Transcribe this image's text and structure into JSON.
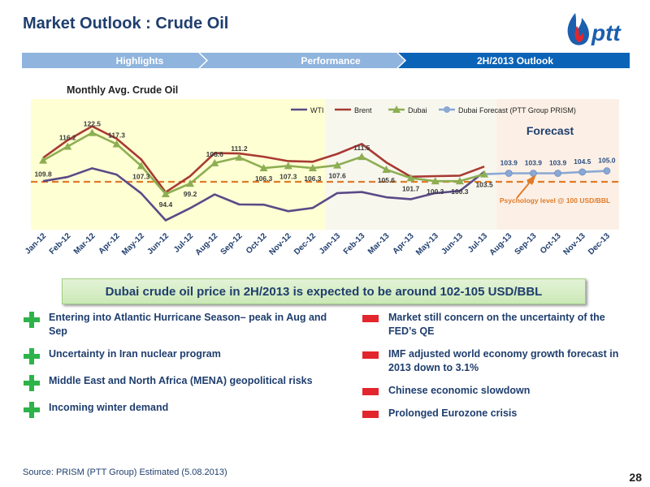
{
  "page": {
    "title": "Market Outlook : Crude Oil",
    "page_number": "28",
    "source": "Source: PRISM (PTT Group) Estimated (5.08.2013)"
  },
  "logo": {
    "text": "ptt"
  },
  "nav": {
    "tabs": [
      "Highlights",
      "Performance",
      "2H/2013 Outlook"
    ],
    "active_index": 2
  },
  "chart_data": {
    "type": "line",
    "title": "Monthly Avg.  Crude Oil",
    "categories": [
      "Jan-12",
      "Feb-12",
      "Mar-12",
      "Apr-12",
      "May-12",
      "Jun-12",
      "Jul-12",
      "Aug-12",
      "Sep-12",
      "Oct-12",
      "Nov-12",
      "Dec-12",
      "Jan-13",
      "Feb-13",
      "Mar-13",
      "Apr-13",
      "May-13",
      "Jun-13",
      "Jul-13",
      "Aug-13",
      "Sep-13",
      "Oct-13",
      "Nov-13",
      "Dec-13"
    ],
    "series": [
      {
        "name": "WTI",
        "color": "#5b4a87",
        "marker": "none",
        "values": [
          100.3,
          102.2,
          106.2,
          103.3,
          94.7,
          82.3,
          87.9,
          94.2,
          89.6,
          89.5,
          86.5,
          88.0,
          94.8,
          95.3,
          92.9,
          92.0,
          94.8,
          95.8,
          104.6,
          null,
          null,
          null,
          null,
          null
        ]
      },
      {
        "name": "Brent",
        "color": "#a83a32",
        "marker": "none",
        "values": [
          111.0,
          119.1,
          125.5,
          119.8,
          110.3,
          95.2,
          102.6,
          113.2,
          113.0,
          111.5,
          109.5,
          109.2,
          112.8,
          117.4,
          108.9,
          102.3,
          102.6,
          102.8,
          107.0,
          null,
          null,
          null,
          null,
          null
        ]
      },
      {
        "name": "Dubai",
        "color": "#8dae52",
        "marker": "triangle",
        "values": [
          109.8,
          116.2,
          122.5,
          117.3,
          107.3,
          94.4,
          99.2,
          108.6,
          111.2,
          106.3,
          107.3,
          106.3,
          107.6,
          111.5,
          105.6,
          101.7,
          100.3,
          100.3,
          103.5,
          null,
          null,
          null,
          null,
          null
        ]
      },
      {
        "name": "Dubai Forecast (PTT Group PRISM)",
        "color": "#8aa8d4",
        "marker": "circle",
        "values": [
          null,
          null,
          null,
          null,
          null,
          null,
          null,
          null,
          null,
          null,
          null,
          null,
          null,
          null,
          null,
          null,
          null,
          null,
          103.5,
          103.9,
          103.9,
          103.9,
          104.5,
          105.0
        ]
      }
    ],
    "data_labels": {
      "Dubai": [
        "109.8",
        "116.2",
        "122.5",
        "117.3",
        "107.3",
        "94.4",
        "99.2",
        "108.6",
        "111.2",
        "106.3",
        "107.3",
        "106.3",
        "107.6",
        "111.5",
        "105.6",
        "101.7",
        "100.3",
        "100.3",
        "103.5"
      ],
      "Dubai Forecast (PTT Group PRISM)": [
        "103.9",
        "103.9",
        "103.9",
        "104.5",
        "105.0"
      ]
    },
    "ylim": [
      78,
      138
    ],
    "reference_line": {
      "value": 100,
      "label": "Psychology level  @ 100 USD/BBL",
      "color": "#e07b2a"
    },
    "region_label": "Forecast",
    "region_colors": [
      "#ffffd4",
      "#f7f7ee",
      "#fcf0e6"
    ],
    "legend_position": "top",
    "xlabel": "",
    "ylabel": ""
  },
  "callout": {
    "text": "Dubai crude oil price in 2H/2013 is expected to be around 102-105 USD/BBL"
  },
  "positive_factors": [
    "Entering into Atlantic Hurricane Season– peak in Aug and Sep",
    "Uncertainty in Iran nuclear program",
    "Middle East and North Africa (MENA) geopolitical risks",
    "Incoming winter demand"
  ],
  "negative_factors": [
    "Market still concern on the uncertainty of the FED’s QE",
    "IMF adjusted world economy growth forecast in 2013 down to 3.1%",
    "Chinese economic slowdown",
    "Prolonged Eurozone crisis"
  ]
}
